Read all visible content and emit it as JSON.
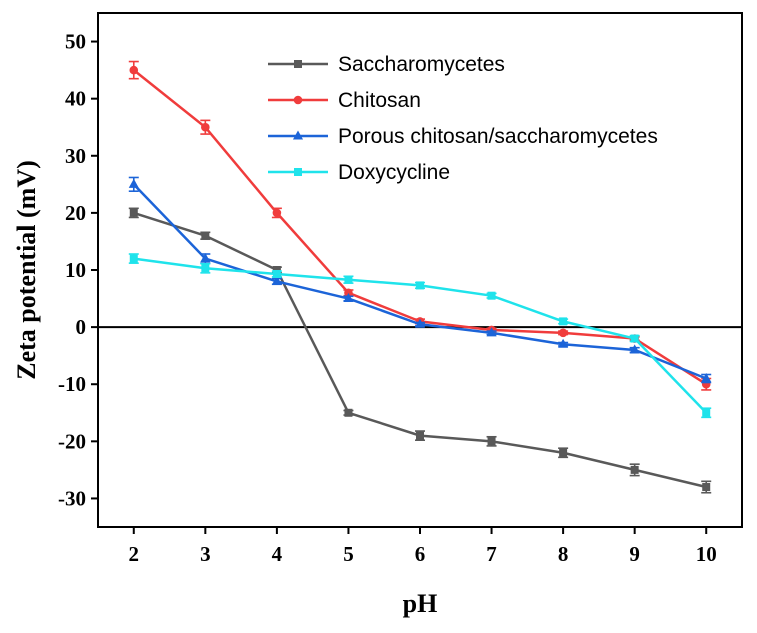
{
  "chart_data": {
    "type": "line",
    "title": "",
    "xlabel": "pH",
    "ylabel": "Zeta potential (mV)",
    "x": [
      2,
      3,
      4,
      5,
      6,
      7,
      8,
      9,
      10
    ],
    "xlim": [
      1.5,
      10.5
    ],
    "ylim": [
      -35,
      55
    ],
    "xticks": [
      2,
      3,
      4,
      5,
      6,
      7,
      8,
      9,
      10
    ],
    "yticks": [
      -30,
      -20,
      -10,
      0,
      10,
      20,
      30,
      40,
      50
    ],
    "zero_line": true,
    "grid": false,
    "legend_position": "top-right",
    "series": [
      {
        "name": "Saccharomycetes",
        "color": "#595959",
        "marker": "square",
        "values": [
          20,
          16,
          10,
          -15,
          -19,
          -20,
          -22,
          -25,
          -28
        ],
        "errors": [
          0.8,
          0.6,
          0.5,
          0.4,
          0.8,
          0.8,
          0.8,
          1.0,
          1.0
        ]
      },
      {
        "name": "Chitosan",
        "color": "#f03c3c",
        "marker": "circle",
        "values": [
          45,
          35,
          20,
          6,
          1,
          -0.5,
          -1,
          -2,
          -10
        ],
        "errors": [
          1.5,
          1.2,
          0.8,
          0.5,
          0.4,
          0.3,
          0.3,
          0.3,
          1.0
        ]
      },
      {
        "name": "Porous chitosan/saccharomycetes",
        "color": "#1c64d8",
        "marker": "triangle",
        "values": [
          25,
          12,
          8,
          5,
          0.5,
          -1,
          -3,
          -4,
          -9
        ],
        "errors": [
          1.2,
          0.8,
          0.5,
          0.4,
          0.3,
          0.3,
          0.3,
          0.4,
          0.7
        ]
      },
      {
        "name": "Doxycycline",
        "color": "#1fe3eb",
        "marker": "square",
        "values": [
          12,
          10.3,
          9.3,
          8.3,
          7.3,
          5.5,
          1,
          -2,
          -15
        ],
        "errors": [
          0.8,
          0.8,
          0.5,
          0.6,
          0.5,
          0.4,
          0.4,
          0.5,
          0.8
        ]
      }
    ]
  }
}
